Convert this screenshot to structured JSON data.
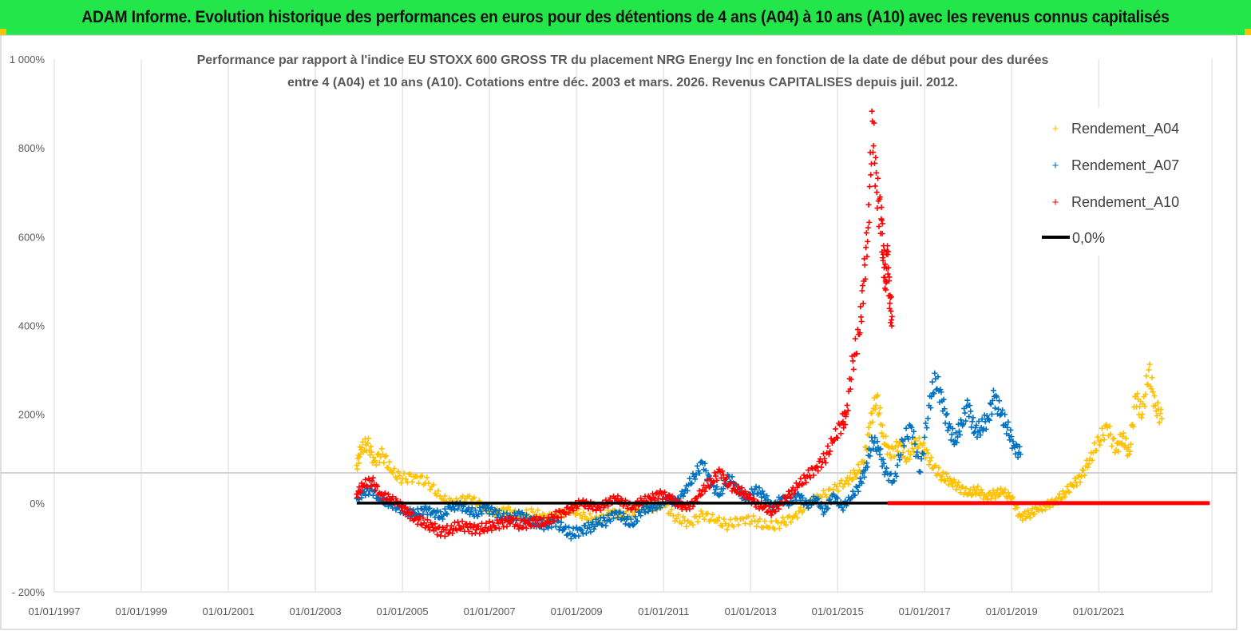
{
  "banner": {
    "title": "ADAM Informe. Evolution historique des performances en euros pour des détentions de 4 ans (A04) à 10 ans (A10) avec les revenus connus capitalisés"
  },
  "colors": {
    "banner_bg": "#22e64a",
    "a04": "#ffc000",
    "a07": "#0070c0",
    "a10": "#ff0000",
    "zero": "#000000",
    "grid": "#d9d9d9"
  },
  "chart_data": {
    "type": "scatter",
    "title_line1": "Performance par rapport à l'indice EU STOXX 600 GROSS TR  du placement NRG Energy Inc en fonction de la date de début pour des durées",
    "title_line2": "entre 4 (A04) et 10 ans (A10).  Cotations entre déc. 2003 et mars. 2026. Revenus CAPITALISES depuis juil. 2012.",
    "xlabel": "",
    "ylabel": "",
    "xlim": [
      1997.0,
      2023.6
    ],
    "ylim": [
      -200,
      1000
    ],
    "x_ticks": [
      1997,
      1999,
      2001,
      2003,
      2005,
      2007,
      2009,
      2011,
      2013,
      2015,
      2017,
      2019,
      2021
    ],
    "x_tick_labels": [
      "01/01/1997",
      "01/01/1999",
      "01/01/2001",
      "01/01/2003",
      "01/01/2005",
      "01/01/2007",
      "01/01/2009",
      "01/01/2011",
      "01/01/2013",
      "01/01/2015",
      "01/01/2017",
      "01/01/2019",
      "01/01/2021"
    ],
    "y_ticks": [
      -200,
      0,
      200,
      400,
      600,
      800,
      1000
    ],
    "y_tick_labels": [
      "- 200%",
      "0%",
      "200%",
      "400%",
      "600%",
      "800%",
      "1 000%"
    ],
    "legend_position": "top-right",
    "series": [
      {
        "name": "Rendement_A04",
        "marker": "+",
        "color_key": "a04",
        "x": [
          2003.95,
          2004.05,
          2004.2,
          2004.35,
          2004.55,
          2004.75,
          2005.0,
          2005.3,
          2005.6,
          2005.9,
          2006.2,
          2006.5,
          2006.8,
          2007.1,
          2007.4,
          2007.7,
          2008.0,
          2008.3,
          2008.6,
          2008.9,
          2009.2,
          2009.5,
          2009.8,
          2010.1,
          2010.4,
          2010.7,
          2011.0,
          2011.3,
          2011.6,
          2011.9,
          2012.2,
          2012.5,
          2012.8,
          2013.1,
          2013.4,
          2013.7,
          2014.0,
          2014.3,
          2014.6,
          2014.9,
          2015.2,
          2015.4,
          2015.6,
          2015.75,
          2015.9,
          2016.05,
          2016.2,
          2016.4,
          2016.6,
          2016.8,
          2017.0,
          2017.2,
          2017.4,
          2017.6,
          2017.8,
          2018.0,
          2018.2,
          2018.4,
          2018.6,
          2018.8,
          2019.0,
          2019.2,
          2019.4,
          2019.6,
          2019.8,
          2020.0,
          2020.2,
          2020.4,
          2020.6,
          2020.8,
          2021.0,
          2021.2,
          2021.4,
          2021.55,
          2021.7,
          2021.85,
          2022.0,
          2022.15,
          2022.3,
          2022.45
        ],
        "y": [
          85,
          120,
          135,
          95,
          110,
          70,
          55,
          60,
          45,
          10,
          0,
          15,
          -5,
          -25,
          -15,
          -30,
          -20,
          -35,
          -25,
          -15,
          -30,
          -40,
          -20,
          -30,
          -15,
          -10,
          -5,
          -35,
          -45,
          -25,
          -40,
          -50,
          -35,
          -40,
          -55,
          -45,
          -30,
          -5,
          15,
          30,
          50,
          65,
          90,
          180,
          240,
          150,
          110,
          130,
          100,
          140,
          120,
          80,
          60,
          50,
          35,
          20,
          30,
          15,
          20,
          25,
          10,
          -30,
          -25,
          -15,
          -5,
          5,
          20,
          40,
          60,
          100,
          140,
          170,
          120,
          150,
          110,
          240,
          200,
          300,
          220,
          190
        ]
      },
      {
        "name": "Rendement_A07",
        "marker": "+",
        "color_key": "a07",
        "x": [
          2003.95,
          2004.1,
          2004.3,
          2004.5,
          2004.7,
          2004.9,
          2005.1,
          2005.3,
          2005.5,
          2005.7,
          2005.9,
          2006.1,
          2006.3,
          2006.5,
          2006.7,
          2006.9,
          2007.1,
          2007.3,
          2007.5,
          2007.7,
          2007.9,
          2008.1,
          2008.3,
          2008.5,
          2008.7,
          2008.9,
          2009.1,
          2009.3,
          2009.5,
          2009.7,
          2009.9,
          2010.1,
          2010.3,
          2010.5,
          2010.7,
          2010.9,
          2011.1,
          2011.3,
          2011.5,
          2011.7,
          2011.9,
          2012.1,
          2012.3,
          2012.5,
          2012.7,
          2012.9,
          2013.1,
          2013.3,
          2013.5,
          2013.7,
          2013.9,
          2014.1,
          2014.3,
          2014.5,
          2014.7,
          2014.9,
          2015.1,
          2015.3,
          2015.5,
          2015.65,
          2015.8,
          2015.95,
          2016.1,
          2016.3,
          2016.5,
          2016.7,
          2016.9,
          2017.1,
          2017.25,
          2017.4,
          2017.55,
          2017.7,
          2017.85,
          2018.0,
          2018.15,
          2018.3,
          2018.45,
          2018.6,
          2018.75,
          2018.9,
          2019.05,
          2019.2
        ],
        "y": [
          10,
          25,
          30,
          5,
          0,
          -10,
          -20,
          -25,
          -15,
          -20,
          -30,
          -10,
          -5,
          -15,
          -25,
          -10,
          -20,
          -30,
          -35,
          -25,
          -40,
          -45,
          -50,
          -40,
          -60,
          -70,
          -60,
          -55,
          -45,
          -40,
          -20,
          -35,
          -50,
          -15,
          -10,
          -5,
          10,
          0,
          30,
          60,
          90,
          40,
          20,
          60,
          30,
          10,
          30,
          20,
          -10,
          10,
          0,
          20,
          -5,
          10,
          -20,
          20,
          -10,
          10,
          40,
          80,
          140,
          120,
          70,
          50,
          140,
          170,
          70,
          220,
          280,
          230,
          170,
          140,
          180,
          220,
          160,
          170,
          190,
          240,
          200,
          170,
          130,
          110
        ]
      },
      {
        "name": "Rendement_A10",
        "marker": "+",
        "color_key": "a10",
        "x": [
          2003.95,
          2004.1,
          2004.3,
          2004.5,
          2004.7,
          2004.9,
          2005.1,
          2005.3,
          2005.5,
          2005.7,
          2005.9,
          2006.1,
          2006.3,
          2006.5,
          2006.7,
          2006.9,
          2007.1,
          2007.3,
          2007.5,
          2007.7,
          2007.9,
          2008.1,
          2008.3,
          2008.5,
          2008.7,
          2008.9,
          2009.1,
          2009.3,
          2009.5,
          2009.7,
          2009.9,
          2010.1,
          2010.3,
          2010.5,
          2010.7,
          2010.9,
          2011.1,
          2011.3,
          2011.5,
          2011.7,
          2011.9,
          2012.1,
          2012.3,
          2012.5,
          2012.7,
          2012.9,
          2013.1,
          2013.3,
          2013.5,
          2013.7,
          2013.9,
          2014.1,
          2014.3,
          2014.5,
          2014.7,
          2014.9,
          2015.1,
          2015.2,
          2015.35,
          2015.5,
          2015.6,
          2015.7,
          2015.8,
          2015.9,
          2016.0,
          2016.05,
          2016.1,
          2016.15,
          2016.2,
          2016.25
        ],
        "y": [
          20,
          40,
          50,
          20,
          10,
          0,
          -20,
          -35,
          -45,
          -55,
          -65,
          -60,
          -50,
          -55,
          -60,
          -55,
          -50,
          -45,
          -40,
          -50,
          -45,
          -40,
          -45,
          -30,
          -20,
          -10,
          0,
          -5,
          -10,
          0,
          10,
          0,
          -10,
          5,
          10,
          20,
          15,
          0,
          -10,
          0,
          30,
          50,
          70,
          40,
          30,
          20,
          0,
          -10,
          -20,
          0,
          20,
          40,
          60,
          80,
          100,
          140,
          180,
          200,
          320,
          380,
          500,
          620,
          860,
          700,
          640,
          560,
          500,
          560,
          450,
          420
        ]
      },
      {
        "name": "0,0%",
        "marker": "line",
        "color_key": "zero",
        "x": [
          2003.95,
          2016.15
        ],
        "y": [
          0,
          0
        ]
      }
    ],
    "flat_segment": {
      "series": "Rendement_A10",
      "x_start": 2016.15,
      "x_end": 2023.55,
      "y": 0
    }
  }
}
